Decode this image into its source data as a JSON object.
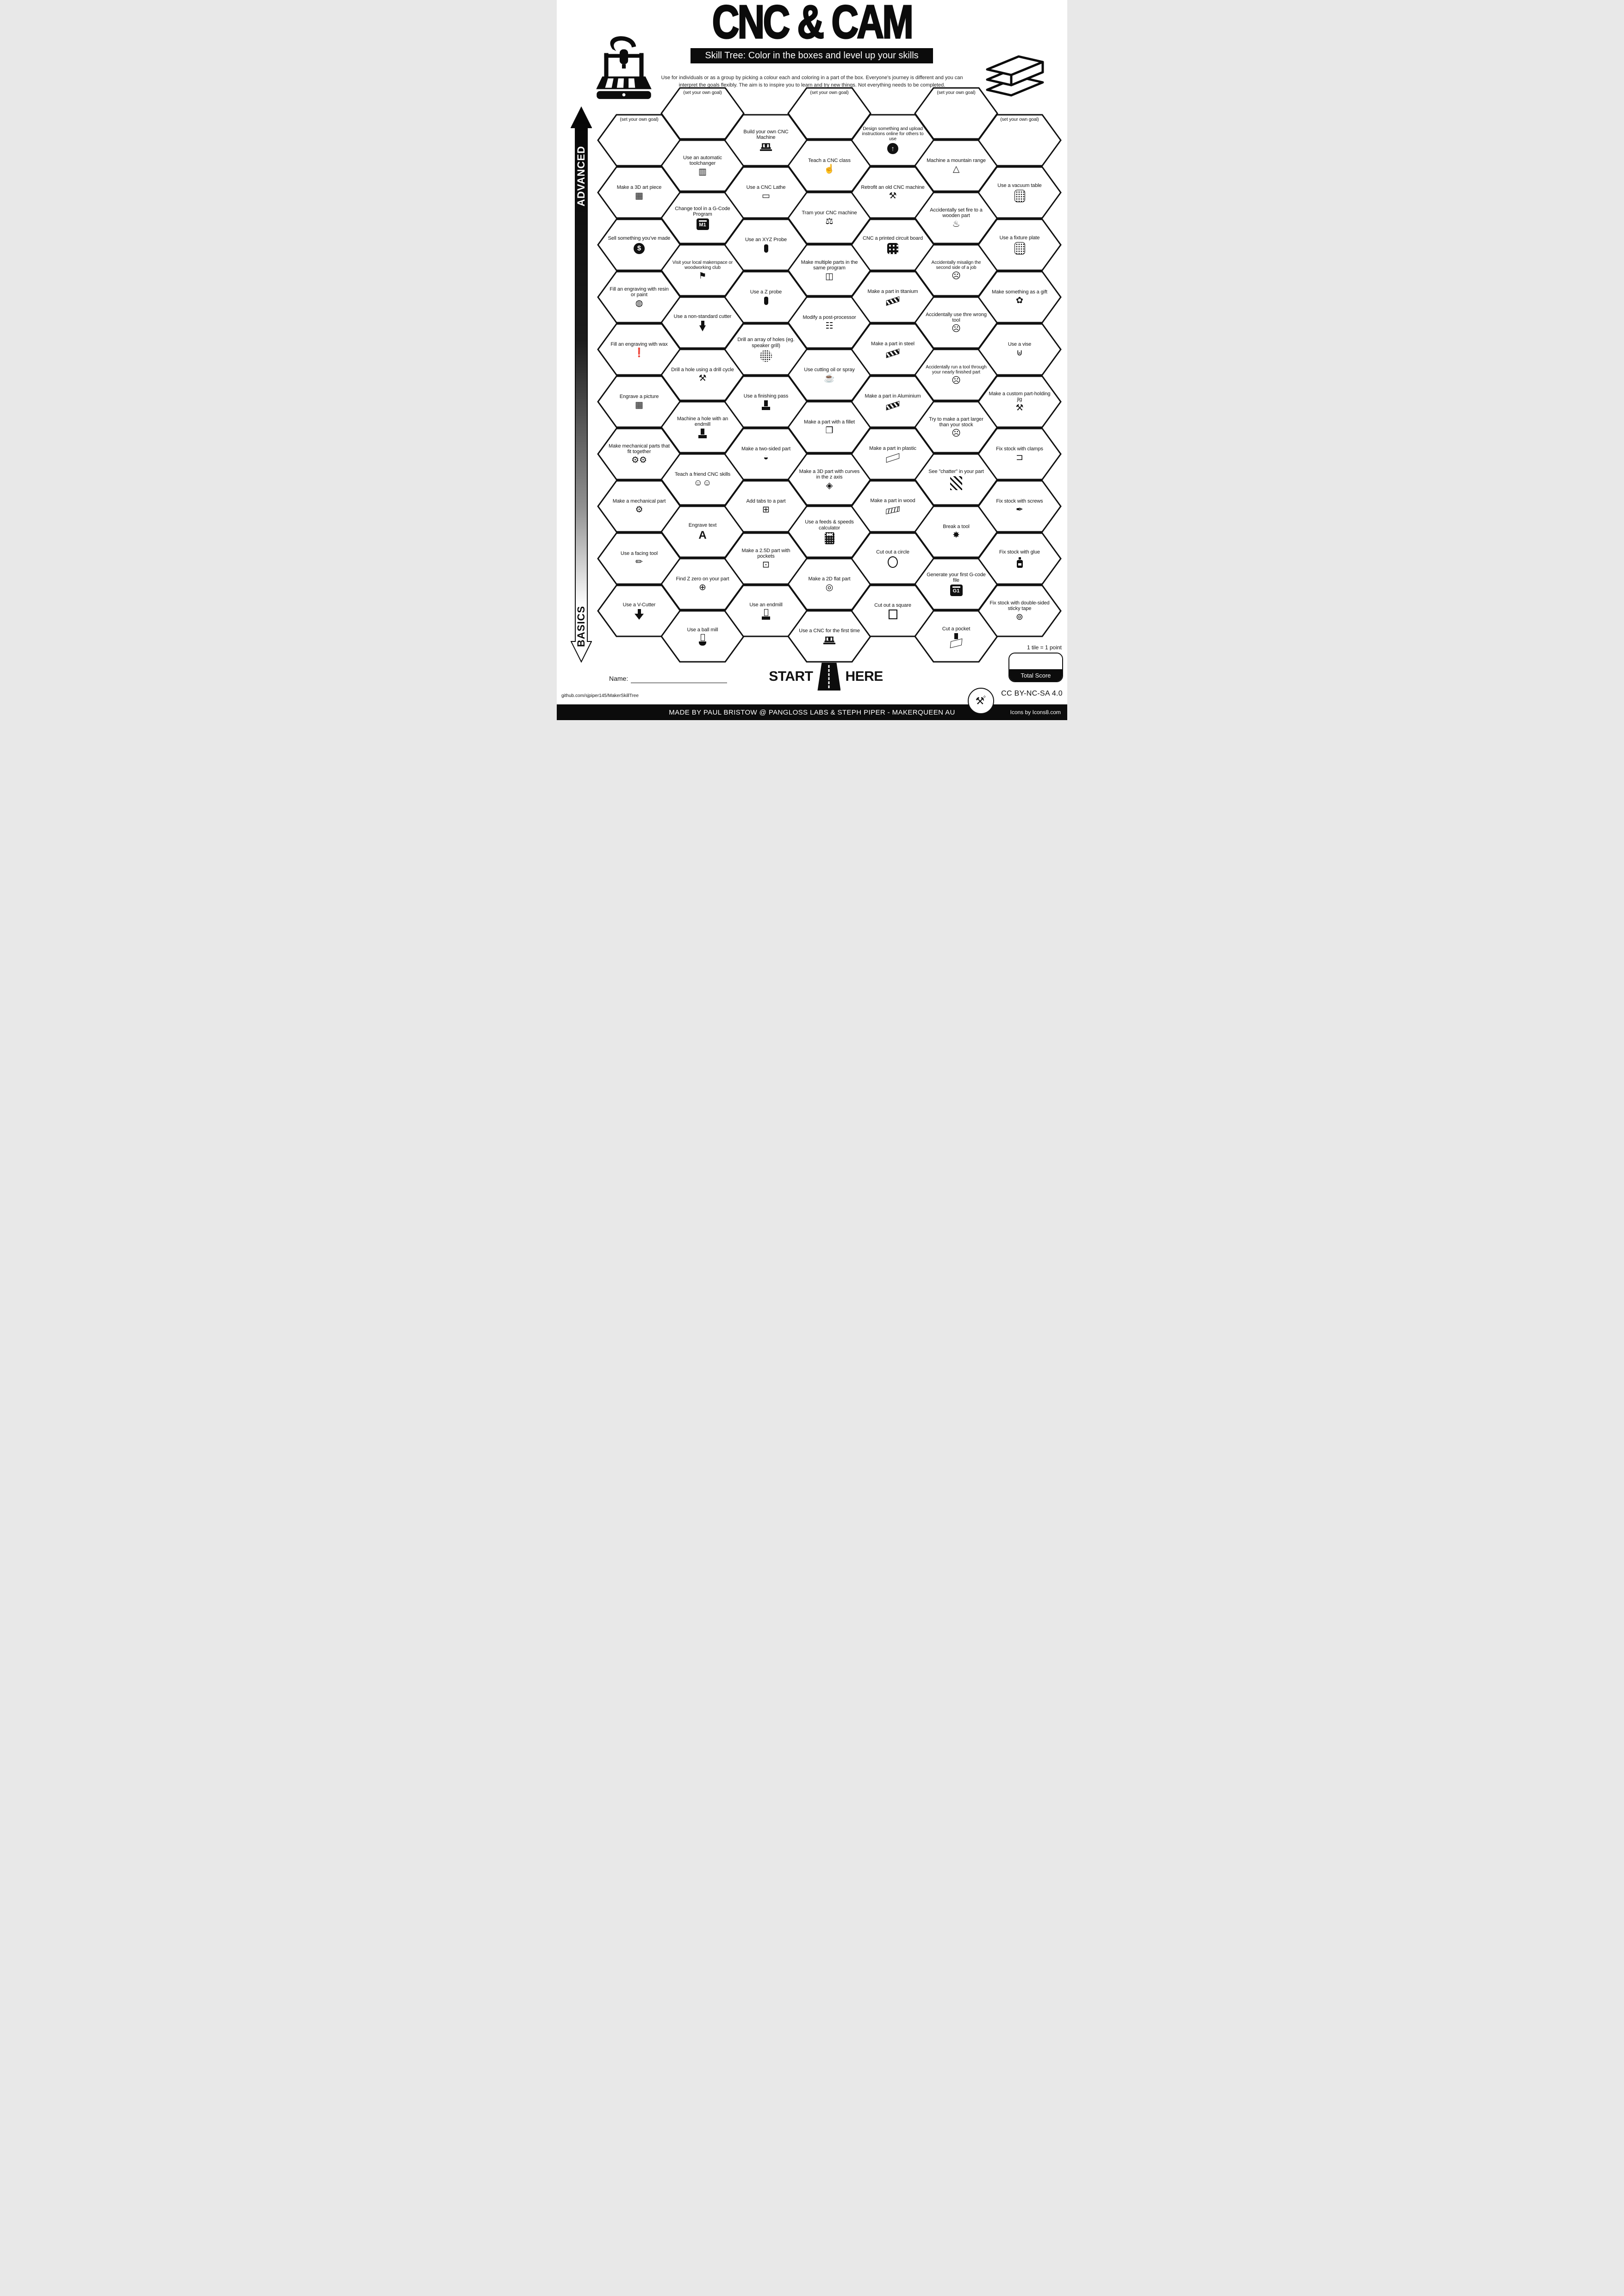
{
  "header": {
    "title": "CNC & CAM",
    "subtitle": "Skill Tree:  Color in the boxes and level up your skills",
    "description_line1": "Use for individuals or as a group by picking a colour each and coloring in a part of the box.  Everyone's journey is different and you can",
    "description_line2": "interpret the goals flexibly.  The aim is to inspire you to learn and try new things. Not everything needs to be completed."
  },
  "axis": {
    "top_label": "ADVANCED",
    "bottom_label": "BASICS"
  },
  "start_marker": {
    "start": "START",
    "here": "HERE"
  },
  "score_box": {
    "note": "1 tile = 1 point",
    "label": "Total Score"
  },
  "form": {
    "name_label": "Name:"
  },
  "footer": {
    "repo_url": "github.com/sjpiper145/MakerSkillTree",
    "license": "CC BY-NC-SA 4.0",
    "credits": "MADE BY PAUL BRISTOW @ PANGLOSS LABS & STEPH PIPER  -  MAKERQUEEN AU",
    "icons_credit": "Icons by Icons8.com"
  },
  "colors": {
    "ink": "#111111",
    "paper": "#ffffff"
  },
  "grid": {
    "columns": [
      {
        "tiles": [
          {
            "label": "(set your own goal)",
            "goal": true
          },
          {
            "label": "Make a 3D art piece",
            "icon": {
              "name": "easel-icon",
              "kind": "glyph",
              "glyph": "▦"
            }
          },
          {
            "label": "Sell something you've made",
            "icon": {
              "name": "dollar-icon",
              "kind": "disc",
              "glyph": "$"
            }
          },
          {
            "label": "Fill an engraving with resin or paint",
            "icon": {
              "name": "paint-bucket-icon",
              "kind": "glyph",
              "glyph": "◍"
            }
          },
          {
            "label": "Fill an engraving with wax",
            "icon": {
              "name": "candle-icon",
              "kind": "glyph",
              "glyph": "❗"
            }
          },
          {
            "label": "Engrave a picture",
            "icon": {
              "name": "picture-easel-icon",
              "kind": "glyph",
              "glyph": "▦"
            }
          },
          {
            "label": "Make mechanical parts that fit together",
            "icon": {
              "name": "gears-icon",
              "kind": "glyph",
              "glyph": "⚙⚙"
            }
          },
          {
            "label": "Make a mechanical part",
            "icon": {
              "name": "gear-icon",
              "kind": "glyph",
              "glyph": "⚙"
            }
          },
          {
            "label": "Use a facing tool",
            "icon": {
              "name": "facing-tool-icon",
              "kind": "glyph",
              "glyph": "✏"
            }
          },
          {
            "label": "Use a V-Cutter",
            "icon": {
              "name": "v-cutter-icon",
              "kind": "vbit"
            }
          }
        ]
      },
      {
        "tiles": [
          {
            "label": "(set your own goal)",
            "goal": true
          },
          {
            "label": "Use an automatic toolchanger",
            "icon": {
              "name": "toolchanger-icon",
              "kind": "glyph",
              "glyph": "▥"
            }
          },
          {
            "label": "Change tool in a G-Code Program",
            "icon": {
              "name": "m1-code-icon",
              "kind": "badge",
              "text": "M1"
            }
          },
          {
            "label": "Visit your local makerspace or woodworking club",
            "icon": {
              "name": "location-pin-icon",
              "kind": "glyph",
              "glyph": "⚑"
            }
          },
          {
            "label": "Use a non-standard cutter",
            "icon": {
              "name": "dovetail-cutter-icon",
              "kind": "trapezoid"
            }
          },
          {
            "label": "Drill a hole using a drill cycle",
            "icon": {
              "name": "drill-bit-icon",
              "kind": "glyph",
              "glyph": "⚒"
            }
          },
          {
            "label": "Machine a hole with an endmill",
            "icon": {
              "name": "endmill-hole-icon",
              "kind": "endmill"
            }
          },
          {
            "label": "Teach a friend CNC skills",
            "icon": {
              "name": "friends-icon",
              "kind": "glyph",
              "glyph": "☺☺"
            }
          },
          {
            "label": "Engrave text",
            "icon": {
              "name": "letter-a-icon",
              "kind": "letter",
              "glyph": "A"
            }
          },
          {
            "label": "Find Z zero on your part",
            "icon": {
              "name": "crosshair-icon",
              "kind": "glyph",
              "glyph": "⊕"
            }
          },
          {
            "label": "Use a ball mill",
            "icon": {
              "name": "ball-mill-icon",
              "kind": "ballmill"
            }
          }
        ]
      },
      {
        "tiles": [
          {
            "label": "Build your own CNC Machine",
            "icon": {
              "name": "cnc-machine-icon",
              "kind": "machine"
            }
          },
          {
            "label": "Use a CNC Lathe",
            "icon": {
              "name": "lathe-icon",
              "kind": "glyph",
              "glyph": "▭"
            }
          },
          {
            "label": "Use an XYZ Probe",
            "icon": {
              "name": "xyz-probe-icon",
              "kind": "probe"
            }
          },
          {
            "label": "Use a Z probe",
            "icon": {
              "name": "z-probe-icon",
              "kind": "probe"
            }
          },
          {
            "label": "Drill an array of holes (eg. speaker grill)",
            "icon": {
              "name": "speaker-grill-icon",
              "kind": "dotcircle"
            }
          },
          {
            "label": "Use a finishing pass",
            "icon": {
              "name": "finishing-pass-icon",
              "kind": "endmill"
            }
          },
          {
            "label": "Make a two-sided part",
            "icon": {
              "name": "two-sided-part-icon",
              "kind": "glyph",
              "glyph": "◒"
            }
          },
          {
            "label": "Add tabs to a part",
            "icon": {
              "name": "tabs-plate-icon",
              "kind": "glyph",
              "glyph": "⊞"
            }
          },
          {
            "label": "Make a 2.5D part with pockets",
            "icon": {
              "name": "pockets-part-icon",
              "kind": "glyph",
              "glyph": "⊡"
            }
          },
          {
            "label": "Use an endmill",
            "icon": {
              "name": "endmill-icon",
              "kind": "endmill_o"
            }
          }
        ]
      },
      {
        "tiles": [
          {
            "label": "(set your own goal)",
            "goal": true
          },
          {
            "label": "Teach a CNC class",
            "icon": {
              "name": "teacher-icon",
              "kind": "glyph",
              "glyph": "☝"
            }
          },
          {
            "label": "Tram your CNC machine",
            "icon": {
              "name": "gauges-icon",
              "kind": "glyph",
              "glyph": "⚖"
            }
          },
          {
            "label": "Make multiple parts in the same program",
            "icon": {
              "name": "multi-parts-icon",
              "kind": "glyph",
              "glyph": "◫"
            }
          },
          {
            "label": "Modify a post-processor",
            "icon": {
              "name": "keyboard-icon",
              "kind": "glyph",
              "glyph": "☷"
            }
          },
          {
            "label": "Use cutting oil or spray",
            "icon": {
              "name": "oil-can-icon",
              "kind": "glyph",
              "glyph": "☕"
            }
          },
          {
            "label": "Make a part with a fillet",
            "icon": {
              "name": "fillet-part-icon",
              "kind": "glyph",
              "glyph": "❒"
            }
          },
          {
            "label": "Make a 3D part with curves in the z axis",
            "icon": {
              "name": "curved-part-icon",
              "kind": "glyph",
              "glyph": "◈"
            }
          },
          {
            "label": "Use a feeds & speeds calculator",
            "icon": {
              "name": "calculator-icon",
              "kind": "calc"
            }
          },
          {
            "label": "Make a 2D flat part",
            "icon": {
              "name": "flat-part-icon",
              "kind": "glyph",
              "glyph": "◎"
            }
          },
          {
            "label": "Use a CNC for the first time",
            "icon": {
              "name": "cnc-machine-icon",
              "kind": "machine"
            }
          }
        ]
      },
      {
        "tiles": [
          {
            "label": "Design something and upload instructions online for others to use",
            "icon": {
              "name": "upload-icon",
              "kind": "disc",
              "glyph": "↑"
            }
          },
          {
            "label": "Retrofit an old CNC machine",
            "icon": {
              "name": "crossed-tools-icon",
              "kind": "glyph",
              "glyph": "⚒"
            }
          },
          {
            "label": "CNC a printed circuit board",
            "icon": {
              "name": "pcb-icon",
              "kind": "pcb"
            }
          },
          {
            "label": "Make a part in titanium",
            "icon": {
              "name": "titanium-bar-icon",
              "kind": "ingot"
            }
          },
          {
            "label": "Make a part in steel",
            "icon": {
              "name": "steel-bar-icon",
              "kind": "ingot"
            }
          },
          {
            "label": "Make a part in Aluminium",
            "icon": {
              "name": "aluminium-bar-icon",
              "kind": "ingot"
            }
          },
          {
            "label": "Make a part in plastic",
            "icon": {
              "name": "plastic-bar-icon",
              "kind": "ingot_o"
            }
          },
          {
            "label": "Make a part in wood",
            "icon": {
              "name": "wood-plank-icon",
              "kind": "ingot_s"
            }
          },
          {
            "label": "Cut out a circle",
            "icon": {
              "name": "circle-icon",
              "kind": "shape_circle"
            }
          },
          {
            "label": "Cut out a square",
            "icon": {
              "name": "square-icon",
              "kind": "shape_square"
            }
          }
        ]
      },
      {
        "tiles": [
          {
            "label": "(set your own goal)",
            "goal": true
          },
          {
            "label": "Machine a mountain range",
            "icon": {
              "name": "mountain-icon",
              "kind": "glyph",
              "glyph": "△"
            }
          },
          {
            "label": "Accidentally set fire to a wooden part",
            "icon": {
              "name": "flame-icon",
              "kind": "glyph",
              "glyph": "♨"
            }
          },
          {
            "label": "Accidentally misalign the second side of a job",
            "icon": {
              "name": "facepalm-icon",
              "kind": "glyph",
              "glyph": "☹"
            }
          },
          {
            "label": "Accidentally use thre wrong tool",
            "icon": {
              "name": "facepalm-icon",
              "kind": "glyph",
              "glyph": "☹"
            }
          },
          {
            "label": "Accidentally run a tool through your nearly finished part",
            "icon": {
              "name": "facepalm-icon",
              "kind": "glyph",
              "glyph": "☹"
            }
          },
          {
            "label": "Try to make a part larger than your stock",
            "icon": {
              "name": "facepalm-icon",
              "kind": "glyph",
              "glyph": "☹"
            }
          },
          {
            "label": "See \"chatter\" in your part",
            "icon": {
              "name": "chatter-icon",
              "kind": "stripes"
            }
          },
          {
            "label": "Break a tool",
            "icon": {
              "name": "broken-tool-icon",
              "kind": "glyph",
              "glyph": "✸"
            }
          },
          {
            "label": "Generate your first G-code file",
            "icon": {
              "name": "g1-code-icon",
              "kind": "badge",
              "text": "G1"
            }
          },
          {
            "label": "Cut a pocket",
            "icon": {
              "name": "pocket-icon",
              "kind": "pocket"
            }
          }
        ]
      },
      {
        "tiles": [
          {
            "label": "(set your own goal)",
            "goal": true
          },
          {
            "label": "Use a vacuum table",
            "icon": {
              "name": "vacuum-table-icon",
              "kind": "dotplate"
            }
          },
          {
            "label": "Use a fixture plate",
            "icon": {
              "name": "fixture-plate-icon",
              "kind": "dotplate"
            }
          },
          {
            "label": "Make something as a gift",
            "icon": {
              "name": "gift-bow-icon",
              "kind": "glyph",
              "glyph": "✿"
            }
          },
          {
            "label": "Use a vise",
            "icon": {
              "name": "vise-icon",
              "kind": "glyph",
              "glyph": "⊎"
            }
          },
          {
            "label": "Make a custom part-holding jig",
            "icon": {
              "name": "jig-tools-icon",
              "kind": "glyph",
              "glyph": "⚒"
            }
          },
          {
            "label": "Fix stock with clamps",
            "icon": {
              "name": "clamp-icon",
              "kind": "glyph",
              "glyph": "⊐"
            }
          },
          {
            "label": "Fix stock with screws",
            "icon": {
              "name": "screw-icon",
              "kind": "glyph",
              "glyph": "✒"
            }
          },
          {
            "label": "Fix stock with glue",
            "icon": {
              "name": "glue-bottle-icon",
              "kind": "glue"
            }
          },
          {
            "label": "Fix stock with double-sided sticky tape",
            "icon": {
              "name": "tape-roll-icon",
              "kind": "glyph",
              "glyph": "⊚"
            }
          }
        ]
      }
    ]
  }
}
